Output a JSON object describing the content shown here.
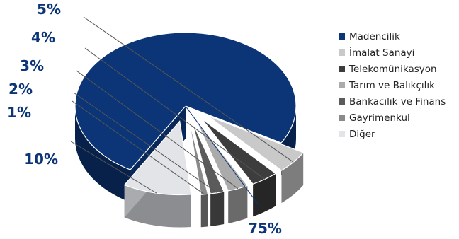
{
  "chart_data": {
    "type": "pie",
    "title": "",
    "unit": "%",
    "slices": [
      {
        "label": "Madencilik",
        "value": 75,
        "color": "#0b3577"
      },
      {
        "label": "İmalat Sanayi",
        "value": 5,
        "color": "#c9c9c9"
      },
      {
        "label": "Telekomünikasyon",
        "value": 4,
        "color": "#3d3d3d"
      },
      {
        "label": "Tarım ve Balıkçılık",
        "value": 3,
        "color": "#ababab"
      },
      {
        "label": "Bankacılık ve Finans",
        "value": 2,
        "color": "#5b5b5b"
      },
      {
        "label": "Gayrimenkul",
        "value": 1,
        "color": "#8a8a8a"
      },
      {
        "label": "Diğer",
        "value": 10,
        "color": "#e2e4e8"
      }
    ],
    "label_color": "#0b3577",
    "legend_position": "right"
  }
}
